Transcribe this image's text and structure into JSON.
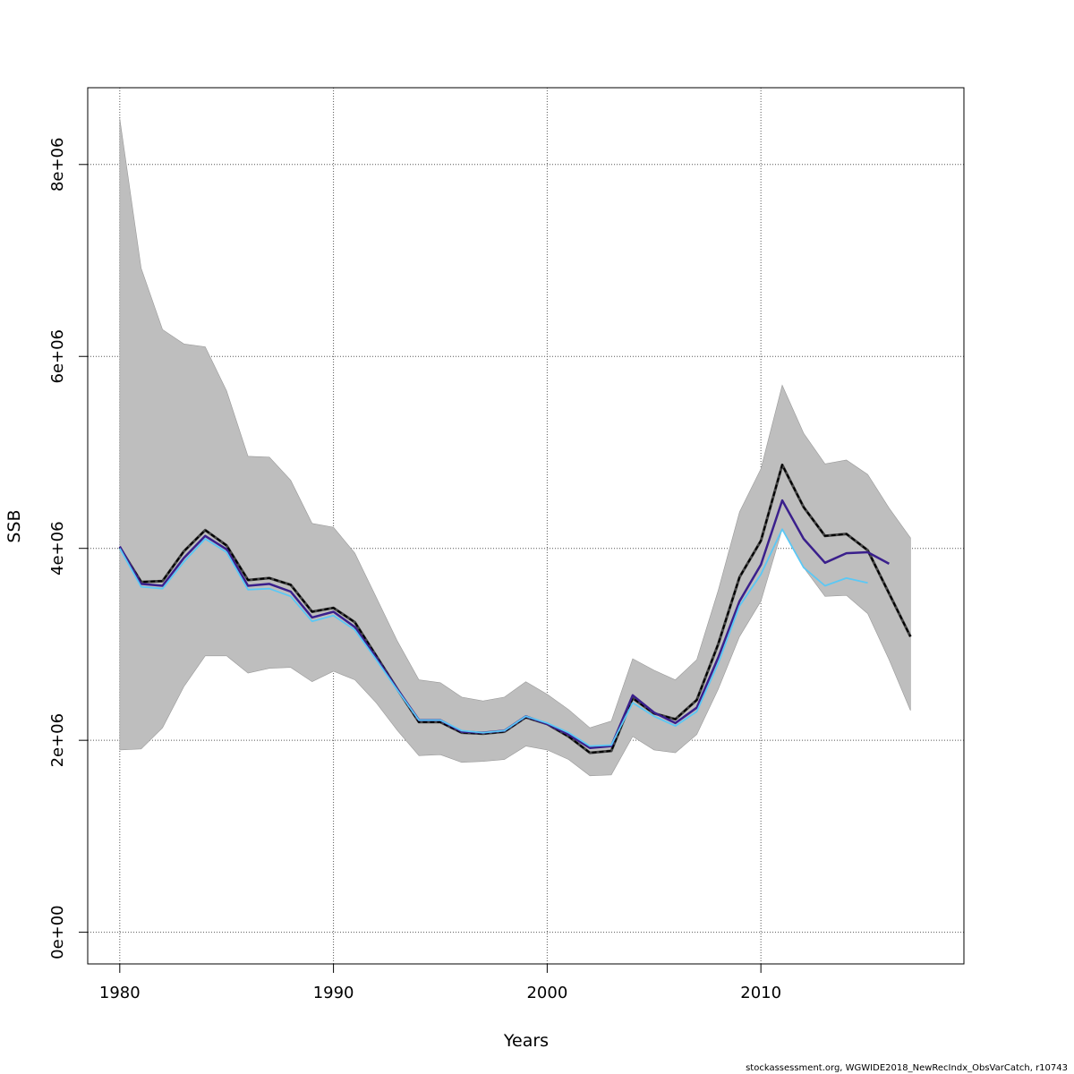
{
  "chart_data": {
    "type": "line",
    "xlabel": "Years",
    "ylabel": "SSB",
    "xlim": [
      1978.5,
      2019.5
    ],
    "ylim": [
      -330000,
      8800000
    ],
    "x_ticks": [
      1980,
      1990,
      2000,
      2010
    ],
    "x_tick_labels": [
      "1980",
      "1990",
      "2000",
      "2010"
    ],
    "y_ticks": [
      0,
      2000000,
      4000000,
      6000000,
      8000000
    ],
    "y_tick_labels": [
      "0e+00",
      "2e+06",
      "4e+06",
      "6e+06",
      "8e+06"
    ],
    "grid": true,
    "band": {
      "x": [
        1980,
        1981,
        1982,
        1983,
        1984,
        1985,
        1986,
        1987,
        1988,
        1989,
        1990,
        1991,
        1992,
        1993,
        1994,
        1995,
        1996,
        1997,
        1998,
        1999,
        2000,
        2001,
        2002,
        2003,
        2004,
        2005,
        2006,
        2007,
        2008,
        2009,
        2010,
        2011,
        2012,
        2013,
        2014,
        2015,
        2016,
        2017
      ],
      "lower": [
        1900000,
        1910000,
        2130000,
        2560000,
        2880000,
        2880000,
        2700000,
        2750000,
        2760000,
        2610000,
        2720000,
        2630000,
        2390000,
        2100000,
        1840000,
        1850000,
        1770000,
        1780000,
        1800000,
        1940000,
        1900000,
        1800000,
        1630000,
        1640000,
        2040000,
        1900000,
        1870000,
        2060000,
        2530000,
        3080000,
        3450000,
        4200000,
        3800000,
        3500000,
        3510000,
        3320000,
        2840000,
        2310000
      ],
      "upper": [
        8480000,
        6920000,
        6280000,
        6130000,
        6100000,
        5640000,
        4960000,
        4950000,
        4710000,
        4260000,
        4220000,
        3950000,
        3490000,
        3030000,
        2630000,
        2600000,
        2450000,
        2410000,
        2450000,
        2610000,
        2480000,
        2320000,
        2130000,
        2200000,
        2850000,
        2730000,
        2630000,
        2840000,
        3560000,
        4380000,
        4830000,
        5700000,
        5200000,
        4880000,
        4920000,
        4770000,
        4420000,
        4110000
      ],
      "color": "#bebebe"
    },
    "series": [
      {
        "color": "#000000",
        "dashed": true,
        "x": [
          1980,
          1981,
          1982,
          1983,
          1984,
          1985,
          1986,
          1987,
          1988,
          1989,
          1990,
          1991,
          1992,
          1993,
          1994,
          1995,
          1996,
          1997,
          1998,
          1999,
          2000,
          2001,
          2002,
          2003,
          2004,
          2005,
          2006,
          2007,
          2008,
          2009,
          2010,
          2011,
          2012,
          2013,
          2014,
          2015,
          2016,
          2017
        ],
        "values": [
          4010000,
          3650000,
          3660000,
          3970000,
          4190000,
          4030000,
          3670000,
          3690000,
          3620000,
          3340000,
          3380000,
          3230000,
          2880000,
          2530000,
          2190000,
          2190000,
          2080000,
          2070000,
          2090000,
          2240000,
          2170000,
          2040000,
          1870000,
          1890000,
          2440000,
          2280000,
          2220000,
          2420000,
          3000000,
          3700000,
          4080000,
          4870000,
          4430000,
          4130000,
          4150000,
          3980000,
          3530000,
          3080000
        ]
      },
      {
        "color": "#3a1f8c",
        "dashed": false,
        "x": [
          1980,
          1981,
          1982,
          1983,
          1984,
          1985,
          1986,
          1987,
          1988,
          1989,
          1990,
          1991,
          1992,
          1993,
          1994,
          1995,
          1996,
          1997,
          1998,
          1999,
          2000,
          2001,
          2002,
          2003,
          2004,
          2005,
          2006,
          2007,
          2008,
          2009,
          2010,
          2011,
          2012,
          2013,
          2014,
          2015,
          2016
        ],
        "values": [
          4020000,
          3630000,
          3610000,
          3900000,
          4130000,
          3990000,
          3610000,
          3630000,
          3550000,
          3280000,
          3340000,
          3180000,
          2860000,
          2530000,
          2210000,
          2210000,
          2090000,
          2080000,
          2100000,
          2250000,
          2170000,
          2060000,
          1920000,
          1940000,
          2470000,
          2290000,
          2180000,
          2340000,
          2860000,
          3450000,
          3830000,
          4500000,
          4100000,
          3850000,
          3950000,
          3960000,
          3840000
        ]
      },
      {
        "color": "#5bc8f5",
        "dashed": false,
        "x": [
          1980,
          1981,
          1982,
          1983,
          1984,
          1985,
          1986,
          1987,
          1988,
          1989,
          1990,
          1991,
          1992,
          1993,
          1994,
          1995,
          1996,
          1997,
          1998,
          1999,
          2000,
          2001,
          2002,
          2003,
          2004,
          2005,
          2006,
          2007,
          2008,
          2009,
          2010,
          2011,
          2012,
          2013,
          2014,
          2015
        ],
        "values": [
          4000000,
          3600000,
          3580000,
          3860000,
          4100000,
          3960000,
          3570000,
          3580000,
          3500000,
          3240000,
          3300000,
          3150000,
          2840000,
          2520000,
          2210000,
          2210000,
          2100000,
          2080000,
          2100000,
          2250000,
          2180000,
          2080000,
          1940000,
          1950000,
          2390000,
          2250000,
          2150000,
          2300000,
          2800000,
          3400000,
          3730000,
          4200000,
          3800000,
          3610000,
          3690000,
          3640000
        ]
      }
    ],
    "footer": "stockassessment.org, WGWIDE2018_NewRecIndx_ObsVarCatch, r10743"
  }
}
